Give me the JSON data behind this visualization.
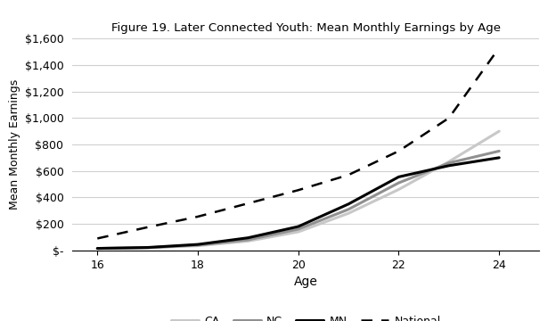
{
  "title": "Figure 19. Later Connected Youth: Mean Monthly Earnings by Age",
  "xlabel": "Age",
  "ylabel": "Mean Monthly Earnings",
  "ages": [
    16,
    17,
    18,
    19,
    20,
    21,
    22,
    23,
    24
  ],
  "CA": [
    15,
    20,
    35,
    70,
    140,
    280,
    460,
    670,
    900
  ],
  "NC": [
    15,
    20,
    40,
    80,
    160,
    310,
    510,
    660,
    750
  ],
  "MN": [
    15,
    22,
    45,
    95,
    180,
    350,
    555,
    640,
    700
  ],
  "National": [
    90,
    175,
    255,
    355,
    455,
    570,
    750,
    1000,
    1530
  ],
  "CA_color": "#c8c8c8",
  "NC_color": "#909090",
  "MN_color": "#000000",
  "National_color": "#000000",
  "ylim": [
    0,
    1600
  ],
  "background_color": "#ffffff",
  "grid_color": "#d0d0d0"
}
